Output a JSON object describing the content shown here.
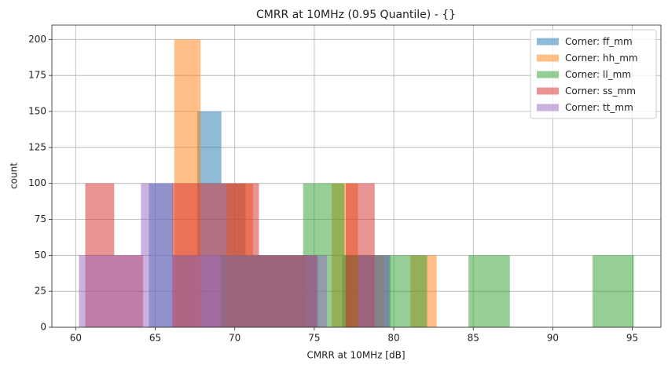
{
  "chart_data": {
    "type": "histogram",
    "title": "CMRR at 10MHz (0.95 Quantile) - {}",
    "x_label": "CMRR at 10MHz [dB]",
    "y_label": "count",
    "xlim": [
      58.5,
      96.8
    ],
    "ylim": [
      0,
      210
    ],
    "xticks": [
      60,
      65,
      70,
      75,
      80,
      85,
      90,
      95
    ],
    "yticks": [
      0,
      25,
      50,
      75,
      100,
      125,
      150,
      175,
      200
    ],
    "grid": true,
    "legend": "upper right",
    "alpha": 0.5,
    "series": [
      {
        "name": "Corner: ff_mm",
        "color": "#1f77b4",
        "bins": [
          64.6,
          66.12,
          67.64,
          69.16,
          70.68,
          72.2,
          73.72,
          75.24,
          76.76,
          78.28,
          79.8
        ],
        "values": [
          100,
          50,
          150,
          100,
          50,
          50,
          50,
          0,
          50,
          50
        ]
      },
      {
        "name": "Corner: hh_mm",
        "color": "#ff7f0e",
        "bins": [
          66.2,
          67.85,
          69.5,
          71.15,
          72.8,
          74.45,
          76.1,
          77.75,
          79.4,
          81.05,
          82.7
        ],
        "values": [
          200,
          0,
          100,
          50,
          50,
          0,
          100,
          50,
          0,
          50
        ]
      },
      {
        "name": "Corner: ll_mm",
        "color": "#2ca02c",
        "bins": [
          69.1,
          71.7,
          74.3,
          76.9,
          79.5,
          82.1,
          84.7,
          87.3,
          89.9,
          92.5,
          95.1
        ],
        "values": [
          50,
          50,
          100,
          50,
          50,
          0,
          50,
          0,
          0,
          50
        ]
      },
      {
        "name": "Corner: ss_mm",
        "color": "#d62728",
        "bins": [
          60.6,
          62.42,
          64.24,
          66.06,
          67.88,
          69.7,
          71.52,
          73.34,
          75.16,
          76.98,
          78.8
        ],
        "values": [
          100,
          50,
          0,
          100,
          100,
          100,
          50,
          50,
          0,
          100
        ]
      },
      {
        "name": "Corner: tt_mm",
        "color": "#9467bd",
        "bins": [
          60.2,
          62.15,
          64.1,
          66.05,
          68.0,
          69.95,
          71.9,
          73.85,
          75.8,
          77.75,
          79.7
        ],
        "values": [
          50,
          50,
          100,
          50,
          50,
          50,
          50,
          50,
          0,
          50
        ]
      }
    ]
  }
}
